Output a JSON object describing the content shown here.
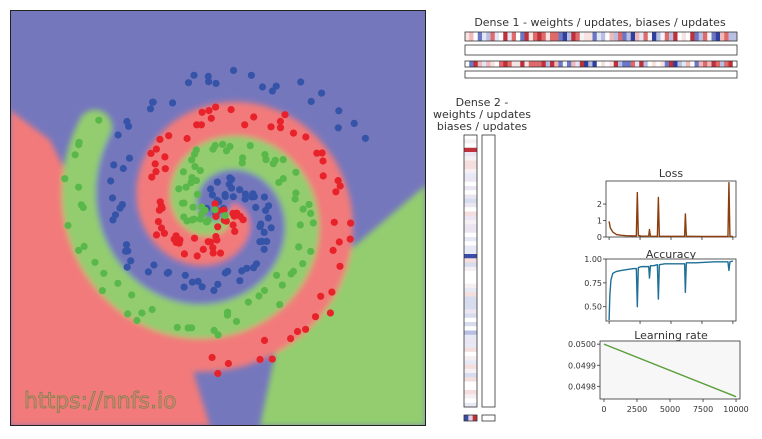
{
  "watermark": "https://nnfs.io",
  "dense1": {
    "title": "Dense 1 - weights / updates, biases / updates"
  },
  "dense2": {
    "title_lines": [
      "Dense 2 -",
      "weights / updates",
      "biases / updates"
    ]
  },
  "colors": {
    "class_blue": "#7577bd",
    "class_red": "#f27a7a",
    "class_green": "#93cd6f",
    "point_blue": "#3554a8",
    "point_red": "#e8222b",
    "point_green": "#5ab84a",
    "loss_line": "#8b3d0e",
    "accuracy_line": "#1f6f96",
    "lr_line": "#5a9e3a"
  },
  "chart_data": [
    {
      "type": "line",
      "title": "Loss",
      "x": [
        0,
        100,
        300,
        600,
        1000,
        1400,
        1800,
        2200,
        2280,
        2360,
        2600,
        3000,
        3200,
        3260,
        3340,
        3600,
        3900,
        3980,
        4060,
        4400,
        5000,
        5800,
        6100,
        6160,
        6240,
        6600,
        7500,
        8500,
        9600,
        9680,
        9760,
        10000
      ],
      "y": [
        0.95,
        0.55,
        0.3,
        0.15,
        0.1,
        0.08,
        0.07,
        0.06,
        2.7,
        0.1,
        0.05,
        0.05,
        0.05,
        0.45,
        0.05,
        0.04,
        0.04,
        2.4,
        0.05,
        0.04,
        0.04,
        0.04,
        0.04,
        1.4,
        0.05,
        0.04,
        0.03,
        0.03,
        0.03,
        3.3,
        0.04,
        0.03
      ],
      "xlim": [
        0,
        10000
      ],
      "ylim": [
        0,
        3.4
      ],
      "yticks": [
        0,
        1,
        2
      ],
      "grid": false
    },
    {
      "type": "line",
      "title": "Accuracy",
      "x": [
        0,
        60,
        150,
        300,
        600,
        1000,
        1500,
        2000,
        2200,
        2280,
        2360,
        2600,
        3000,
        3200,
        3260,
        3340,
        3600,
        3900,
        3980,
        4060,
        4500,
        5500,
        6100,
        6160,
        6240,
        7000,
        8500,
        9600,
        9680,
        9760,
        10000
      ],
      "y": [
        0.36,
        0.62,
        0.78,
        0.85,
        0.87,
        0.88,
        0.89,
        0.9,
        0.9,
        0.5,
        0.91,
        0.92,
        0.92,
        0.92,
        0.8,
        0.93,
        0.93,
        0.94,
        0.58,
        0.94,
        0.95,
        0.95,
        0.95,
        0.65,
        0.96,
        0.96,
        0.97,
        0.97,
        0.88,
        0.97,
        0.98
      ],
      "xlim": [
        0,
        10000
      ],
      "ylim": [
        0.35,
        1.0
      ],
      "yticks": [
        0.5,
        0.75,
        1.0
      ],
      "ytick_labels": [
        "0.50",
        "0.75",
        "1.00"
      ],
      "grid": false
    },
    {
      "type": "line",
      "title": "Learning rate",
      "x": [
        0,
        10000
      ],
      "y": [
        0.05,
        0.049751
      ],
      "xlim": [
        -300,
        10300
      ],
      "ylim": [
        0.04974,
        0.050015
      ],
      "xticks": [
        0,
        2500,
        5000,
        7500,
        10000
      ],
      "yticks": [
        0.0498,
        0.0499,
        0.05
      ],
      "ytick_labels": [
        "0.0498",
        "0.0499",
        "0.0500"
      ],
      "grid": false
    }
  ]
}
